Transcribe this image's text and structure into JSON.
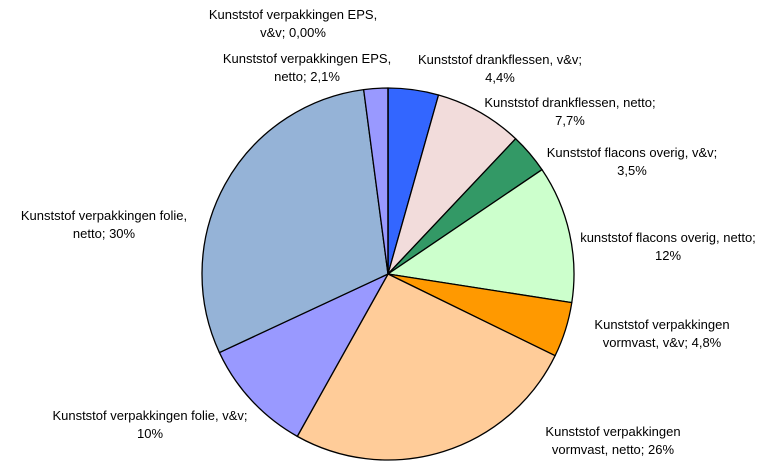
{
  "chart_data": {
    "type": "pie",
    "categories": [
      "Kunststof drankflessen, v&v;",
      "Kunststof drankflessen, netto;",
      "Kunststof flacons overig, v&v;",
      "kunststof flacons overig, netto;",
      "Kunststof verpakkingen vormvast, v&v;",
      "Kunststof verpakkingen vormvast, netto;",
      "Kunststof verpakkingen folie, v&v;",
      "Kunststof verpakkingen folie, netto;",
      "Kunststof verpakkingen EPS, netto;",
      "Kunststof verpakkingen EPS, v&v;"
    ],
    "values": [
      4.4,
      7.7,
      3.5,
      12,
      4.8,
      26,
      10,
      30,
      2.1,
      0
    ],
    "value_labels": [
      "4,4%",
      "7,7%",
      "3,5%",
      "12%",
      "4,8%",
      "26%",
      "10%",
      "30%",
      "2,1%",
      "0,00%"
    ],
    "colors": [
      "#3366ff",
      "#f2dcdb",
      "#339966",
      "#ccffcc",
      "#ff9900",
      "#ffcc99",
      "#9999ff",
      "#95b3d7",
      "#9999ff",
      "#ccccff"
    ]
  }
}
